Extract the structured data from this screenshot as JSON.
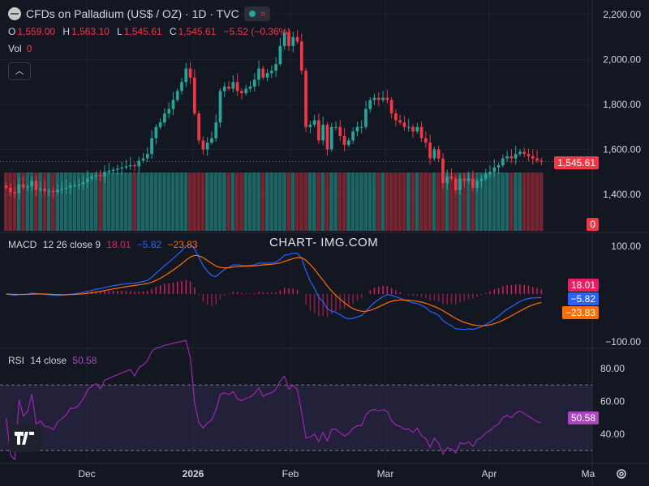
{
  "header": {
    "title": "CFDs on Palladium (US$ / OZ) · 1D · TVC",
    "ohlc": {
      "o_label": "O",
      "o": "1,559.00",
      "h_label": "H",
      "h": "1,563.10",
      "l_label": "L",
      "l": "1,545.61",
      "c_label": "C",
      "c": "1,545.61",
      "change": "−5.52 (−0.36%)"
    },
    "vol_label": "Vol",
    "vol": "0"
  },
  "watermark": "CHART- IMG.COM",
  "indicators": {
    "macd": {
      "label": "MACD",
      "params": "12 26 close 9",
      "hist": "18.01",
      "macd": "−5.82",
      "signal": "−23.83"
    },
    "rsi": {
      "label": "RSI",
      "params": "14 close",
      "value": "50.58"
    }
  },
  "tags": {
    "price": "1,545.61",
    "vol": "0",
    "macd_hist": "18.01",
    "macd_line": "−5.82",
    "macd_signal": "−23.83",
    "rsi": "50.58"
  },
  "colors": {
    "bg": "#131722",
    "up": "#26a69a",
    "down": "#f23645",
    "macd": "#2962ff",
    "signal": "#ff6d00",
    "hist": "#e91e63",
    "rsi": "#9c27b0",
    "rsi_tag": "#ab47bc"
  },
  "chart_data": [
    {
      "type": "candlestick",
      "title": "CFDs on Palladium (US$ / OZ)",
      "x_ticks": [
        "Dec",
        "2026",
        "Feb",
        "Mar",
        "Apr",
        "Ma"
      ],
      "y_ticks": [
        1400,
        1600,
        1800,
        2000,
        2200
      ],
      "ylim": [
        1250,
        2250
      ],
      "last_price": 1545.61,
      "closes": [
        1430,
        1410,
        1405,
        1445,
        1430,
        1435,
        1460,
        1420,
        1425,
        1415,
        1415,
        1410,
        1420,
        1425,
        1430,
        1440,
        1440,
        1445,
        1455,
        1470,
        1480,
        1485,
        1480,
        1500,
        1505,
        1510,
        1515,
        1520,
        1525,
        1530,
        1525,
        1550,
        1560,
        1580,
        1650,
        1700,
        1720,
        1760,
        1780,
        1820,
        1860,
        1900,
        1960,
        1920,
        1760,
        1640,
        1600,
        1630,
        1650,
        1720,
        1860,
        1880,
        1870,
        1900,
        1860,
        1850,
        1870,
        1880,
        1910,
        1960,
        1920,
        1940,
        1950,
        1980,
        2060,
        2120,
        2060,
        2100,
        2080,
        1950,
        1700,
        1710,
        1730,
        1640,
        1710,
        1600,
        1700,
        1700,
        1660,
        1620,
        1640,
        1680,
        1700,
        1700,
        1780,
        1820,
        1830,
        1820,
        1830,
        1820,
        1760,
        1730,
        1720,
        1700,
        1700,
        1680,
        1700,
        1650,
        1630,
        1560,
        1600,
        1560,
        1450,
        1480,
        1470,
        1420,
        1470,
        1460,
        1470,
        1430,
        1460,
        1470,
        1490,
        1500,
        1520,
        1530,
        1560,
        1570,
        1560,
        1580,
        1590,
        1580,
        1570,
        1560,
        1550,
        1546
      ],
      "volume_bars": "full-height stub volume (Vol 0)"
    },
    {
      "type": "line",
      "title": "MACD 12 26 close 9",
      "y_ticks": [
        -100,
        100
      ],
      "series": [
        {
          "name": "MACD",
          "last": -5.82
        },
        {
          "name": "Signal",
          "last": -23.83
        },
        {
          "name": "Histogram",
          "last": 18.01
        }
      ]
    },
    {
      "type": "line",
      "title": "RSI 14 close",
      "y_ticks": [
        40,
        60,
        80
      ],
      "band": [
        30,
        70
      ],
      "last": 50.58
    }
  ]
}
